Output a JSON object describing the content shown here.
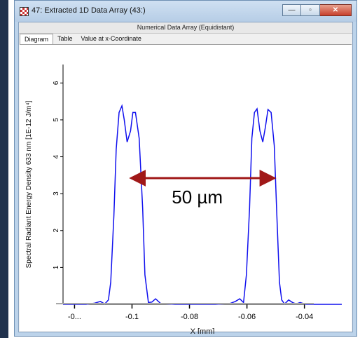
{
  "window": {
    "title": "47: Extracted 1D Data Array (43:)",
    "subtitle": "Numerical Data Array (Equidistant)",
    "buttons": {
      "minimize": "—",
      "maximize": "▫",
      "close": "✕"
    }
  },
  "tabs": [
    {
      "label": "Diagram",
      "active": true
    },
    {
      "label": "Table",
      "active": false
    },
    {
      "label": "Value at x-Coordinate",
      "active": false
    }
  ],
  "annotation": {
    "text": "50 µm",
    "arrow_color": "#a01818"
  },
  "chart_data": {
    "type": "line",
    "xlabel": "X [mm]",
    "ylabel": "Spectral Radiant Energy Density 633 nm [1E-12 J/m⁴]",
    "xlim": [
      -0.124,
      -0.027
    ],
    "ylim": [
      0,
      6.5
    ],
    "x_ticks": [
      {
        "value": -0.12,
        "label": "-0..."
      },
      {
        "value": -0.1,
        "label": "-0.1"
      },
      {
        "value": -0.08,
        "label": "-0.08"
      },
      {
        "value": -0.06,
        "label": "-0.06"
      },
      {
        "value": -0.04,
        "label": "-0.04"
      }
    ],
    "y_ticks": [
      1,
      2,
      3,
      4,
      5,
      6
    ],
    "series_color": "#1010ee",
    "series": [
      {
        "x": [
          -0.124,
          -0.116,
          -0.113,
          -0.111,
          -0.1095,
          -0.1082,
          -0.1074,
          -0.1063,
          -0.1055,
          -0.1045,
          -0.1035,
          -0.1027,
          -0.1017,
          -0.1005,
          -0.0997,
          -0.0988,
          -0.0975,
          -0.0963,
          -0.0955,
          -0.0943,
          -0.0931,
          -0.0918,
          -0.09,
          -0.085,
          -0.078,
          -0.071,
          -0.066,
          -0.064,
          -0.0625,
          -0.0612,
          -0.0602,
          -0.0591,
          -0.0583,
          -0.0574,
          -0.0565,
          -0.0555,
          -0.0545,
          -0.0536,
          -0.0527,
          -0.0516,
          -0.0505,
          -0.0496,
          -0.0487,
          -0.0479,
          -0.0469,
          -0.0455,
          -0.0441,
          -0.0429,
          -0.0415,
          -0.0395,
          -0.027
        ],
        "y": [
          0,
          0,
          0.03,
          0.08,
          0.01,
          0.12,
          0.6,
          2.4,
          4.2,
          5.2,
          5.38,
          5.0,
          4.4,
          4.7,
          5.2,
          5.2,
          4.5,
          2.6,
          0.8,
          0.05,
          0.06,
          0.15,
          0.02,
          0,
          0,
          0,
          0.02,
          0.08,
          0.15,
          0.05,
          0.8,
          2.6,
          4.5,
          5.2,
          5.3,
          4.7,
          4.4,
          4.8,
          5.28,
          5.2,
          4.3,
          2.4,
          0.6,
          0.12,
          0.01,
          0.12,
          0.05,
          0.01,
          0.05,
          0.0,
          0
        ]
      }
    ],
    "arrow_x": [
      -0.1003,
      -0.0505
    ],
    "arrow_y": 3.42
  }
}
